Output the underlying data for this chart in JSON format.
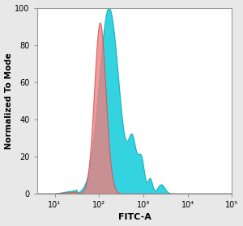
{
  "title": "",
  "xlabel": "FITC-A",
  "ylabel": "Normalized To Mode",
  "xlim_log": [
    4,
    100000
  ],
  "ylim": [
    0,
    100
  ],
  "yticks": [
    0,
    20,
    40,
    60,
    80,
    100
  ],
  "xtick_positions": [
    10,
    100,
    1000,
    10000,
    100000
  ],
  "xtick_labels": [
    "10¹",
    "10²",
    "10³",
    "10⁴",
    "10⁵"
  ],
  "background_color": "#e8e8e8",
  "plot_background": "#ffffff",
  "red_peak_log_mean": 2.02,
  "red_peak_log_std": 0.13,
  "red_peak_height": 92,
  "blue_peak_log_mean": 2.22,
  "blue_peak_log_std": 0.22,
  "blue_peak_height": 100,
  "blue_bump1_mean": 2.75,
  "blue_bump1_std": 0.09,
  "blue_bump1_height": 26,
  "blue_bump2_mean": 2.95,
  "blue_bump2_std": 0.07,
  "blue_bump2_height": 18,
  "blue_color": "#00C8D8",
  "red_color": "#F08080",
  "blue_edge": "#00A0B5",
  "red_edge": "#D05050",
  "alpha_blue": 0.8,
  "alpha_red": 0.8,
  "spine_color": "#999999",
  "figsize": [
    3.0,
    2.8
  ],
  "dpi": 100
}
